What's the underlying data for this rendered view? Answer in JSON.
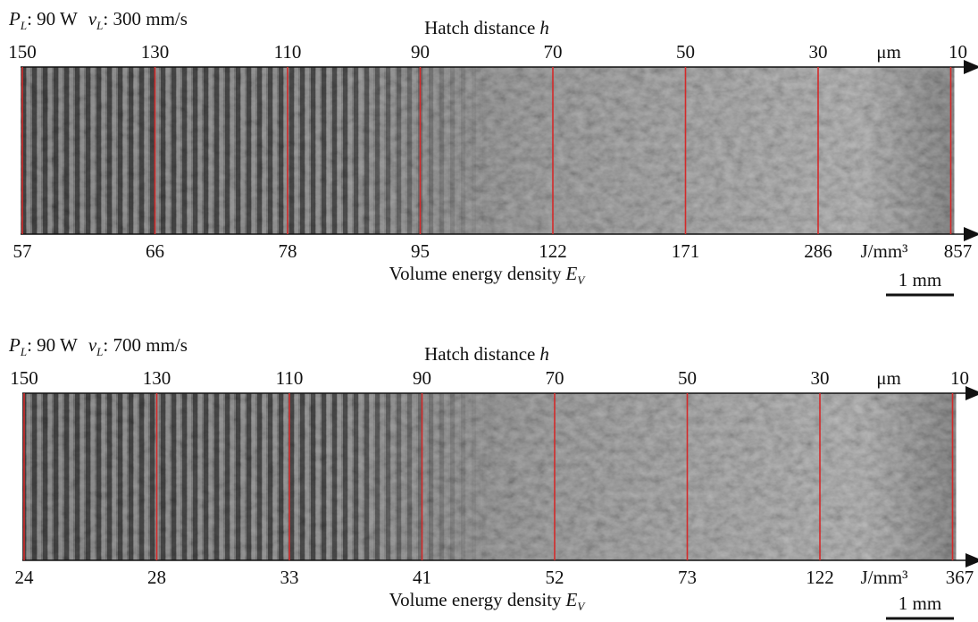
{
  "panels": [
    {
      "condition": {
        "power_symbol": "P",
        "power_subscript": "L",
        "power_text": ": 90 W",
        "speed_symbol": "v",
        "speed_subscript": "L",
        "speed_text": ": 300 mm/s"
      },
      "top_axis": {
        "title": "Hatch distance",
        "title_symbol": "h",
        "unit": "μm",
        "ticks": [
          150,
          130,
          110,
          90,
          70,
          50,
          30,
          10
        ]
      },
      "bottom_axis": {
        "title": "Volume energy density",
        "title_symbol": "E",
        "title_subscript": "V",
        "unit": "J/mm³",
        "ticks": [
          57,
          66,
          78,
          95,
          122,
          171,
          286,
          857
        ]
      },
      "scale_bar": "1 mm"
    },
    {
      "condition": {
        "power_symbol": "P",
        "power_subscript": "L",
        "power_text": ": 90 W",
        "speed_symbol": "v",
        "speed_subscript": "L",
        "speed_text": ": 700 mm/s"
      },
      "top_axis": {
        "title": "Hatch distance",
        "title_symbol": "h",
        "unit": "μm",
        "ticks": [
          150,
          130,
          110,
          90,
          70,
          50,
          30,
          10
        ]
      },
      "bottom_axis": {
        "title": "Volume energy density",
        "title_symbol": "E",
        "title_subscript": "V",
        "unit": "J/mm³",
        "ticks": [
          24,
          28,
          33,
          41,
          52,
          73,
          122,
          367
        ]
      },
      "scale_bar": "1 mm"
    }
  ]
}
